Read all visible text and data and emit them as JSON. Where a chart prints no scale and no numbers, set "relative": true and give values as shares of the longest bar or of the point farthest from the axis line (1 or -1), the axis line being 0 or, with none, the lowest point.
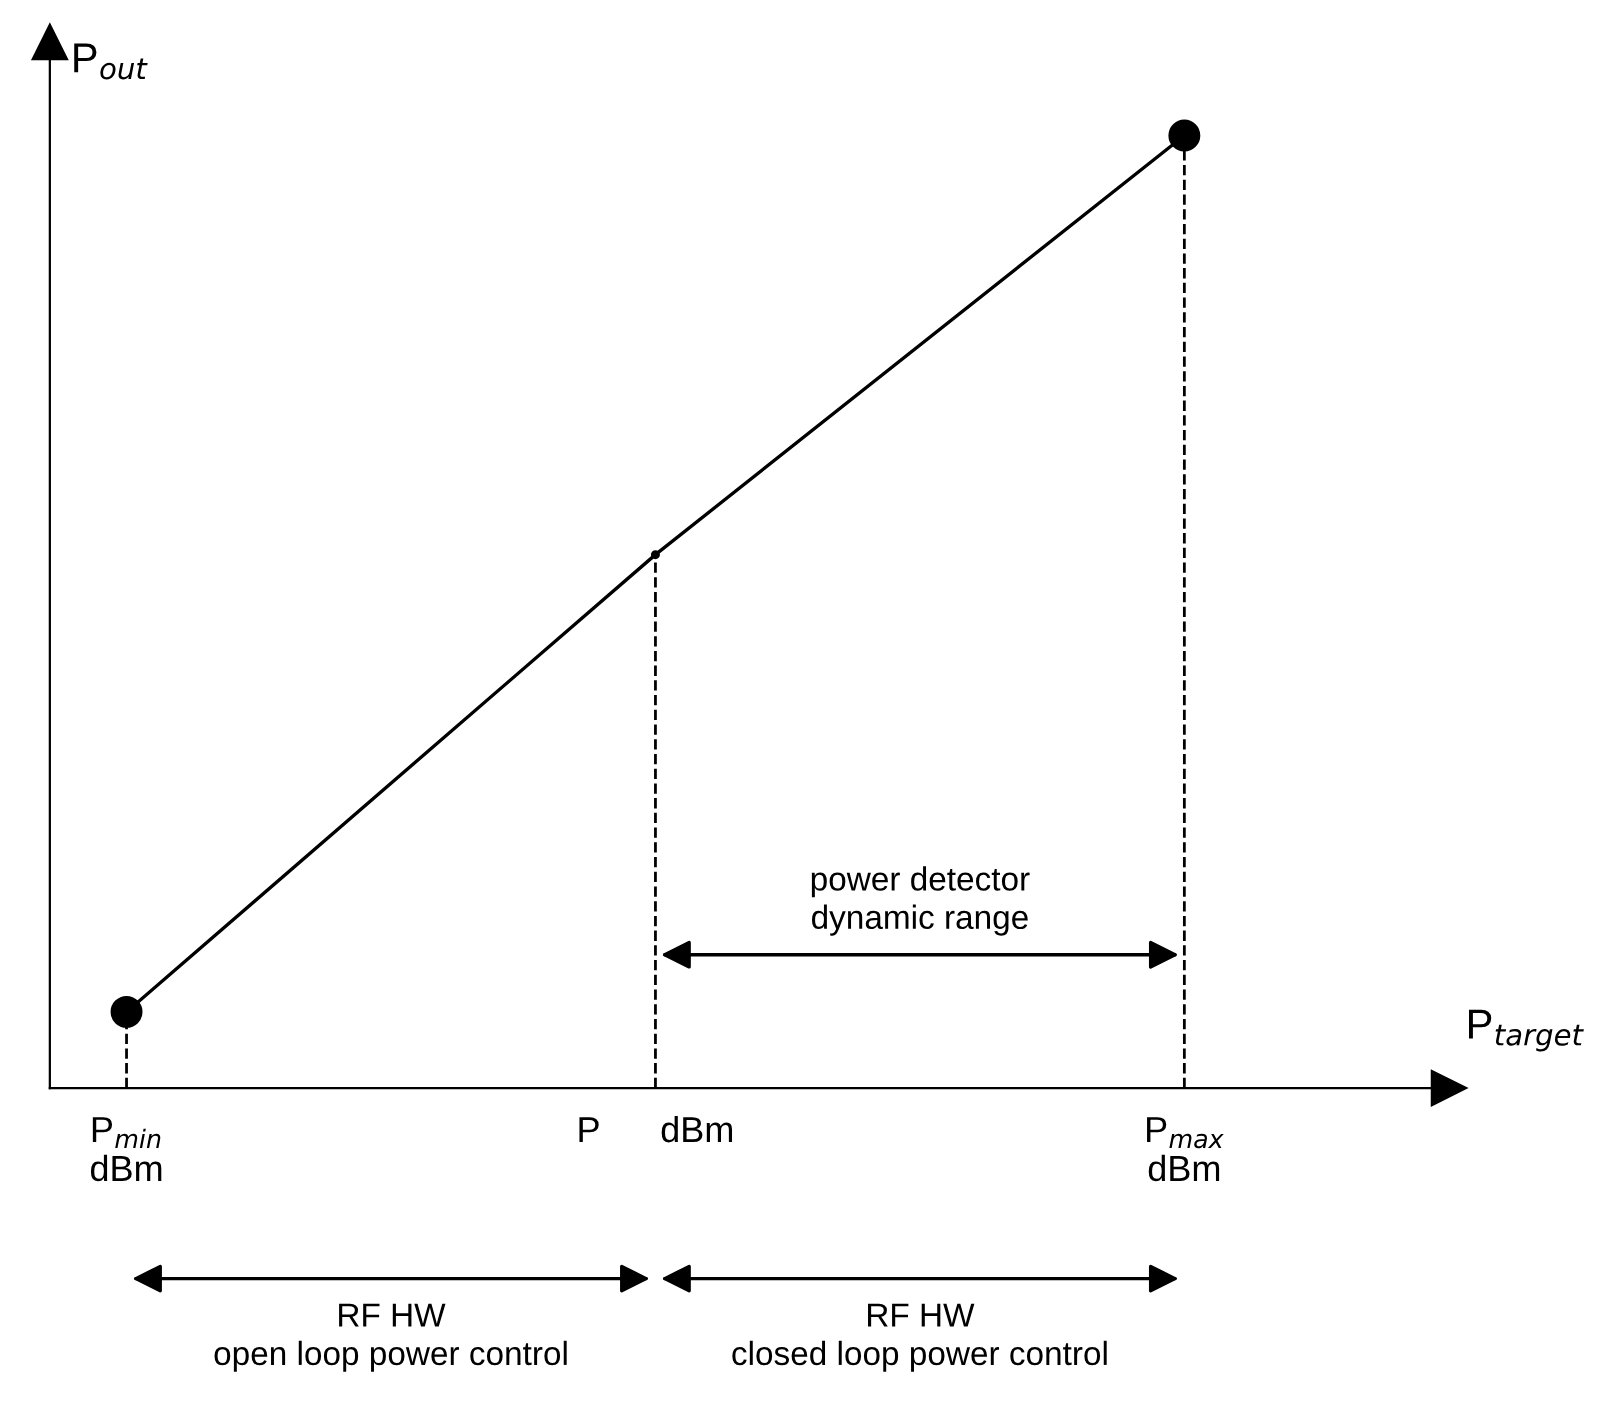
{
  "chart_data": {
    "type": "line",
    "relative": true,
    "tick_labels": "x",
    "legend": false,
    "xlabel": "P$_{target}$",
    "ylabel": "P$_{out}$",
    "categories": [
      "P$_{min}$\ndBm",
      "P      dBm",
      "P$_{max}$\ndBm"
    ],
    "series": [
      {
        "color": "#000000",
        "values": [
          0.08,
          0.56,
          1
        ],
        "marker": "none",
        "line_style": "solid"
      },
      {
        "type": "lollipop",
        "color": "#000000",
        "values": [
          0.08,
          null,
          1
        ],
        "marker": "circle",
        "line_style": "dashed"
      },
      {
        "type": "lollipop",
        "color": "#000000",
        "values": [
          null,
          0.56,
          null
        ],
        "line_style": "dashed"
      }
    ],
    "annotations": [
      "power detector\ndynamic range",
      "RF HW\nopen loop power control",
      "RF HW\nclosed loop power control"
    ]
  }
}
